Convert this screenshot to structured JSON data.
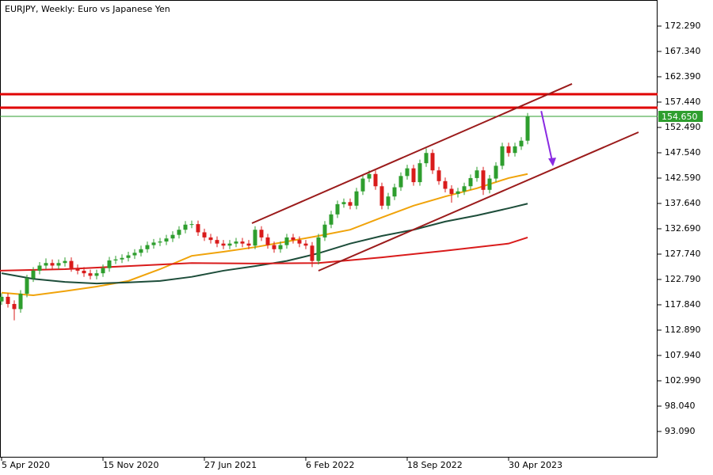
{
  "chart_data": {
    "type": "candlestick",
    "title": "EURJPY, Weekly:  Euro vs Japanese Yen",
    "up_color": "#2e9e2e",
    "down_color": "#d91b1b",
    "xlim": [
      -0.5,
      207
    ],
    "ylim": [
      88.14,
      177.39
    ],
    "xticks": [
      {
        "value": 0,
        "label": "5 Apr 2020"
      },
      {
        "value": 32,
        "label": "15 Nov 2020"
      },
      {
        "value": 64,
        "label": "27 Jun 2021"
      },
      {
        "value": 96,
        "label": "6 Feb 2022"
      },
      {
        "value": 128,
        "label": "18 Sep 2022"
      },
      {
        "value": 160,
        "label": "30 Apr 2023"
      }
    ],
    "yticks": [
      {
        "value": 172.29,
        "label": "172.290"
      },
      {
        "value": 167.34,
        "label": "167.340"
      },
      {
        "value": 162.39,
        "label": "162.390"
      },
      {
        "value": 157.44,
        "label": "157.440"
      },
      {
        "value": 152.49,
        "label": "152.490"
      },
      {
        "value": 147.54,
        "label": "147.540"
      },
      {
        "value": 142.59,
        "label": "142.590"
      },
      {
        "value": 137.64,
        "label": "137.640"
      },
      {
        "value": 132.69,
        "label": "132.690"
      },
      {
        "value": 127.74,
        "label": "127.740"
      },
      {
        "value": 122.79,
        "label": "122.790"
      },
      {
        "value": 117.84,
        "label": "117.840"
      },
      {
        "value": 112.89,
        "label": "112.890"
      },
      {
        "value": 107.94,
        "label": "107.940"
      },
      {
        "value": 102.99,
        "label": "102.990"
      },
      {
        "value": 98.04,
        "label": "98.040"
      },
      {
        "value": 93.09,
        "label": "93.090"
      }
    ],
    "x": [
      0,
      2,
      4,
      6,
      8,
      10,
      12,
      14,
      16,
      18,
      20,
      22,
      24,
      26,
      28,
      30,
      32,
      34,
      36,
      38,
      40,
      42,
      44,
      46,
      48,
      50,
      52,
      54,
      56,
      58,
      60,
      62,
      64,
      66,
      68,
      70,
      72,
      74,
      76,
      78,
      80,
      82,
      84,
      86,
      88,
      90,
      92,
      94,
      96,
      98,
      100,
      102,
      104,
      106,
      108,
      110,
      112,
      114,
      116,
      118,
      120,
      122,
      124,
      126,
      128,
      130,
      132,
      134,
      136,
      138,
      140,
      142,
      144,
      146,
      148,
      150,
      152,
      154,
      156,
      158,
      160,
      162,
      164,
      166
    ],
    "candles": [
      [
        118.5,
        120.1,
        117.8,
        119.4
      ],
      [
        119.4,
        120.1,
        117.3,
        118
      ],
      [
        118,
        118.7,
        114.8,
        117
      ],
      [
        117,
        120.7,
        116.3,
        120
      ],
      [
        120,
        123.7,
        119.3,
        123
      ],
      [
        123,
        125.2,
        122.3,
        124.5
      ],
      [
        124.5,
        126.2,
        123.8,
        125.5
      ],
      [
        125.5,
        126.9,
        124.8,
        126
      ],
      [
        126,
        126.7,
        124.8,
        125.5
      ],
      [
        125.5,
        126.7,
        124.8,
        126
      ],
      [
        126,
        127.1,
        125.3,
        126.4
      ],
      [
        126.4,
        127.1,
        124.3,
        125
      ],
      [
        125,
        125.7,
        123.8,
        124.5
      ],
      [
        124.5,
        125.2,
        123.3,
        124
      ],
      [
        124,
        124.7,
        122.8,
        123.5
      ],
      [
        123.5,
        124.7,
        122.8,
        124
      ],
      [
        124,
        125.7,
        123.3,
        125
      ],
      [
        125,
        127.2,
        124.3,
        126.5
      ],
      [
        126.5,
        127.4,
        125.8,
        126.7
      ],
      [
        126.7,
        127.7,
        126,
        127
      ],
      [
        127,
        128.2,
        126.3,
        127.5
      ],
      [
        127.5,
        128.7,
        126.8,
        128
      ],
      [
        128,
        129.4,
        127.3,
        128.7
      ],
      [
        128.7,
        130.2,
        128,
        129.5
      ],
      [
        129.5,
        130.7,
        128.8,
        130
      ],
      [
        130,
        130.9,
        129.3,
        130.2
      ],
      [
        130.2,
        131.5,
        129.5,
        130.8
      ],
      [
        130.8,
        132.2,
        130.1,
        131.5
      ],
      [
        131.5,
        133.2,
        130.8,
        132.5
      ],
      [
        132.5,
        134.2,
        131.8,
        133.5
      ],
      [
        133.5,
        134.3,
        132.8,
        133.6
      ],
      [
        133.6,
        134.3,
        131.3,
        132
      ],
      [
        132,
        132.7,
        130.3,
        131
      ],
      [
        131,
        131.7,
        129.8,
        130.5
      ],
      [
        130.5,
        131.2,
        129.1,
        129.8
      ],
      [
        129.8,
        130.5,
        128.7,
        129.4
      ],
      [
        129.4,
        130.5,
        128.7,
        129.8
      ],
      [
        129.8,
        130.9,
        129.1,
        130.2
      ],
      [
        130.2,
        130.9,
        129.1,
        129.8
      ],
      [
        129.8,
        130.5,
        128.7,
        129.4
      ],
      [
        129.4,
        133.2,
        128.7,
        132.5
      ],
      [
        132.5,
        133.2,
        130.3,
        131
      ],
      [
        131,
        131.7,
        128.8,
        129.5
      ],
      [
        129.5,
        130.2,
        128,
        128.7
      ],
      [
        128.7,
        130.2,
        128,
        129.5
      ],
      [
        129.5,
        131.7,
        128.8,
        131
      ],
      [
        131,
        131.7,
        129.8,
        130.5
      ],
      [
        130.5,
        131.2,
        129.1,
        129.8
      ],
      [
        129.8,
        130.5,
        128.7,
        129.4
      ],
      [
        129.4,
        130.1,
        125.2,
        126.4
      ],
      [
        126.4,
        131.7,
        125.7,
        131
      ],
      [
        131,
        134.2,
        130.3,
        133.5
      ],
      [
        133.5,
        136.2,
        132.8,
        135.5
      ],
      [
        135.5,
        138.2,
        134.8,
        137.5
      ],
      [
        137.5,
        138.6,
        136.8,
        137.9
      ],
      [
        137.9,
        138.6,
        136.5,
        137.2
      ],
      [
        137.2,
        140.7,
        136.5,
        140
      ],
      [
        140,
        143.2,
        139.3,
        142.5
      ],
      [
        142.5,
        144.1,
        141.8,
        143.4
      ],
      [
        143.4,
        144.1,
        140.3,
        141
      ],
      [
        141,
        141.7,
        136.5,
        137.2
      ],
      [
        137.2,
        139.7,
        136.5,
        139
      ],
      [
        139,
        141.5,
        138.3,
        140.8
      ],
      [
        140.8,
        143.7,
        140.1,
        143
      ],
      [
        143,
        145.2,
        142.3,
        144.5
      ],
      [
        144.5,
        145.2,
        141.1,
        141.8
      ],
      [
        141.8,
        146.2,
        141.1,
        145.5
      ],
      [
        145.5,
        148.4,
        144.8,
        147.5
      ],
      [
        147.5,
        148.2,
        143.4,
        144.1
      ],
      [
        144.1,
        144.8,
        141.3,
        142
      ],
      [
        142,
        142.7,
        139.8,
        140.5
      ],
      [
        140.5,
        141.2,
        137.8,
        139.5
      ],
      [
        139.5,
        140.7,
        138.8,
        140
      ],
      [
        140,
        141.7,
        139.3,
        141
      ],
      [
        141,
        143.3,
        140.3,
        142.6
      ],
      [
        142.6,
        144.8,
        141.9,
        144.1
      ],
      [
        144.1,
        144.8,
        139.3,
        140.3
      ],
      [
        140.3,
        143.2,
        139.6,
        142.5
      ],
      [
        142.5,
        145.7,
        141.8,
        145
      ],
      [
        145,
        149.5,
        144.3,
        148.8
      ],
      [
        148.8,
        149.5,
        146.8,
        147.5
      ],
      [
        147.5,
        149.5,
        146.8,
        148.8
      ],
      [
        148.8,
        150.6,
        148.1,
        149.9
      ],
      [
        149.9,
        155.3,
        149.2,
        154.65
      ]
    ],
    "series": [
      {
        "color": "#f0a30a",
        "x": [
          0,
          10,
          20,
          30,
          40,
          50,
          60,
          70,
          80,
          90,
          100,
          110,
          120,
          130,
          140,
          150,
          160,
          166
        ],
        "values": [
          120.2,
          119.7,
          120.5,
          121.4,
          122.5,
          124.8,
          127.4,
          128.2,
          129.1,
          130.2,
          131.3,
          132.5,
          134.9,
          137.2,
          139,
          140.6,
          142.6,
          143.4
        ]
      },
      {
        "color": "#1d4d3a",
        "x": [
          0,
          10,
          20,
          30,
          40,
          50,
          60,
          70,
          80,
          90,
          100,
          110,
          120,
          130,
          140,
          150,
          160,
          166
        ],
        "values": [
          124,
          122.9,
          122.3,
          122,
          122.2,
          122.5,
          123.3,
          124.5,
          125.4,
          126.4,
          127.9,
          129.8,
          131.3,
          132.5,
          134.1,
          135.3,
          136.7,
          137.6
        ]
      },
      {
        "color": "#d91b1b",
        "x": [
          -0.5,
          20,
          40,
          60,
          80,
          100,
          120,
          140,
          160,
          166
        ],
        "values": [
          124.5,
          124.8,
          125.4,
          126,
          125.9,
          126,
          127.1,
          128.4,
          129.8,
          131
        ]
      }
    ],
    "levels": [
      {
        "value": 158.98,
        "color": "#e00000"
      },
      {
        "value": 156.35,
        "color": "#e00000"
      }
    ],
    "trendlines": [
      {
        "color": "#9b1b1b",
        "x": [
          79,
          180
        ],
        "y": [
          133.77,
          161.0
        ]
      },
      {
        "color": "#9b1b1b",
        "x": [
          100,
          201
        ],
        "y": [
          124.49,
          151.56
        ]
      }
    ],
    "arrow": {
      "color": "#8a2be2",
      "x": [
        170.3,
        174
      ],
      "y": [
        155.7,
        145.2
      ]
    },
    "last_price": {
      "value": 154.65,
      "value_label": "154.650",
      "color": "#2e9e2e"
    }
  }
}
